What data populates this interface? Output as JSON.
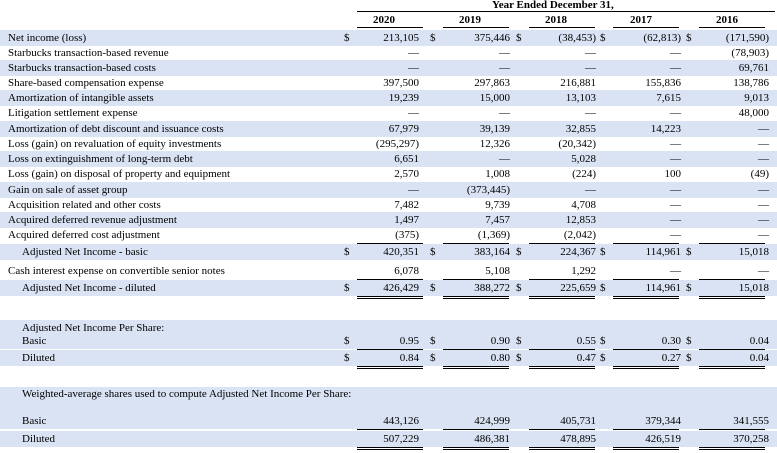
{
  "header": {
    "group_title": "Year Ended December 31,",
    "years": [
      "2020",
      "2019",
      "2018",
      "2017",
      "2016"
    ]
  },
  "rows": [
    {
      "label": "Net income (loss)",
      "dollars": [
        "$",
        "$",
        "$",
        "$",
        "$"
      ],
      "values": [
        "213,105",
        "375,446",
        "(38,453)",
        "(62,813)",
        "(171,590)"
      ]
    },
    {
      "label": "Starbucks transaction-based revenue",
      "values": [
        "—",
        "—",
        "—",
        "—",
        "(78,903)"
      ]
    },
    {
      "label": "Starbucks transaction-based costs",
      "values": [
        "—",
        "—",
        "—",
        "—",
        "69,761"
      ]
    },
    {
      "label": "Share-based compensation expense",
      "values": [
        "397,500",
        "297,863",
        "216,881",
        "155,836",
        "138,786"
      ]
    },
    {
      "label": "Amortization of intangible assets",
      "values": [
        "19,239",
        "15,000",
        "13,103",
        "7,615",
        "9,013"
      ]
    },
    {
      "label": "Litigation settlement expense",
      "values": [
        "—",
        "—",
        "—",
        "—",
        "48,000"
      ]
    },
    {
      "label": "Amortization of debt discount and issuance costs",
      "values": [
        "67,979",
        "39,139",
        "32,855",
        "14,223",
        "—"
      ]
    },
    {
      "label": "Loss (gain) on revaluation of equity investments",
      "values": [
        "(295,297)",
        "12,326",
        "(20,342)",
        "—",
        "—"
      ]
    },
    {
      "label": "Loss on extinguishment of long-term debt",
      "values": [
        "6,651",
        "—",
        "5,028",
        "—",
        "—"
      ]
    },
    {
      "label": "Loss (gain) on disposal of property and equipment",
      "values": [
        "2,570",
        "1,008",
        "(224)",
        "100",
        "(49)"
      ]
    },
    {
      "label": "Gain on sale of asset group",
      "values": [
        "—",
        "(373,445)",
        "—",
        "—",
        "—"
      ]
    },
    {
      "label": "Acquisition related and other costs",
      "values": [
        "7,482",
        "9,739",
        "4,708",
        "—",
        "—"
      ]
    },
    {
      "label": "Acquired deferred revenue adjustment",
      "values": [
        "1,497",
        "7,457",
        "12,853",
        "—",
        "—"
      ]
    },
    {
      "label": "Acquired deferred cost adjustment",
      "values": [
        "(375)",
        "(1,369)",
        "(2,042)",
        "—",
        "—"
      ]
    },
    {
      "label": "Adjusted Net Income - basic",
      "dollars": [
        "$",
        "$",
        "$",
        "$",
        "$"
      ],
      "values": [
        "420,351",
        "383,164",
        "224,367",
        "114,961",
        "15,018"
      ]
    },
    {
      "label": "Cash interest expense on convertible senior notes",
      "values": [
        "6,078",
        "5,108",
        "1,292",
        "—",
        "—"
      ]
    },
    {
      "label": "Adjusted Net Income - diluted",
      "dollars": [
        "$",
        "$",
        "$",
        "$",
        "$"
      ],
      "values": [
        "426,429",
        "388,272",
        "225,659",
        "114,961",
        "15,018"
      ]
    },
    {
      "label": "Adjusted Net Income Per Share:"
    },
    {
      "label": "Basic",
      "dollars": [
        "$",
        "$",
        "$",
        "$",
        "$"
      ],
      "values": [
        "0.95",
        "0.90",
        "0.55",
        "0.30",
        "0.04"
      ]
    },
    {
      "label": "Diluted",
      "dollars": [
        "$",
        "$",
        "$",
        "$",
        "$"
      ],
      "values": [
        "0.84",
        "0.80",
        "0.47",
        "0.27",
        "0.04"
      ]
    },
    {
      "label": "Weighted-average shares used to compute Adjusted Net Income Per Share:"
    },
    {
      "label": "Basic",
      "values": [
        "443,126",
        "424,999",
        "405,731",
        "379,344",
        "341,555"
      ]
    },
    {
      "label": "Diluted",
      "values": [
        "507,229",
        "486,381",
        "478,895",
        "426,519",
        "370,258"
      ]
    }
  ]
}
